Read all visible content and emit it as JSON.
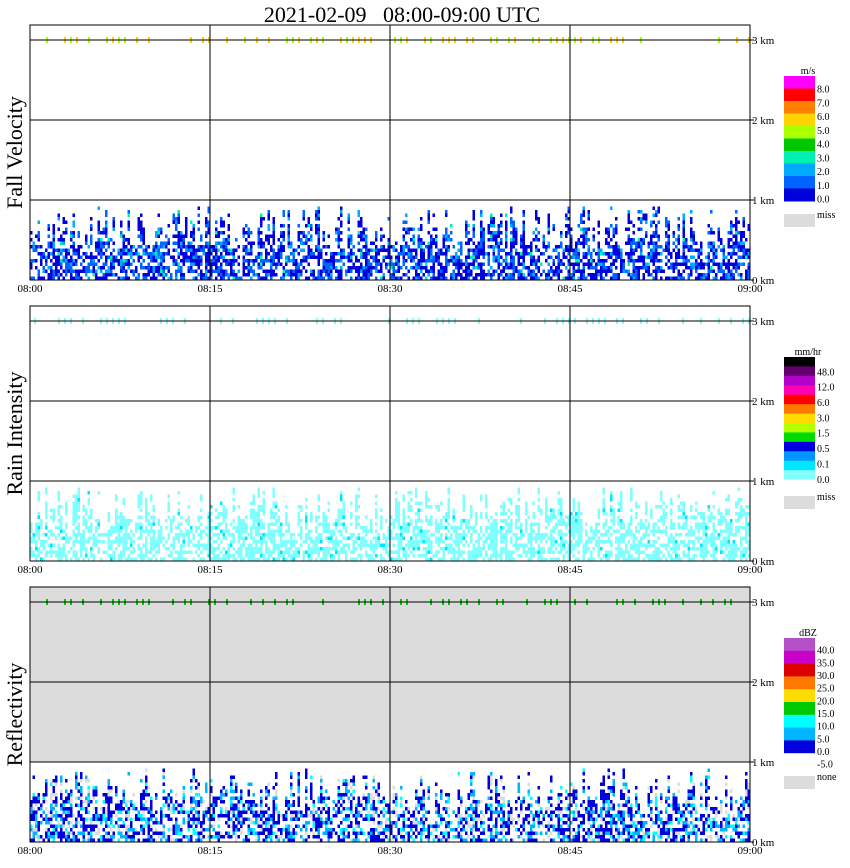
{
  "title": "2021-02-09   08:00-09:00 UTC",
  "x_tick_labels": [
    "08:00",
    "08:15",
    "08:30",
    "08:45",
    "09:00"
  ],
  "y_tick_labels": [
    "0 km",
    "1 km",
    "2 km",
    "3 km"
  ],
  "panels": [
    {
      "ylabel": "Fall Velocity",
      "unit": "m/s",
      "scale_labels": [
        "8.0",
        "7.0",
        "6.0",
        "5.0",
        "4.0",
        "3.0",
        "2.0",
        "1.0",
        "0.0"
      ],
      "scale_colors": [
        "#ff00ff",
        "#ff0000",
        "#ff7f00",
        "#ffd200",
        "#aaff00",
        "#00c800",
        "#00f0b4",
        "#00aaff",
        "#0064ff",
        "#0000dc"
      ],
      "miss_label": "miss",
      "miss_color": "#dcdcdc"
    },
    {
      "ylabel": "Rain Intensity",
      "unit": "mm/hr",
      "scale_labels": [
        "48.0",
        "12.0",
        "6.0",
        "3.0",
        "1.5",
        "0.5",
        "0.1",
        "0.0"
      ],
      "scale_colors": [
        "#000000",
        "#64006e",
        "#b400c8",
        "#ff00b4",
        "#ff0000",
        "#ff7800",
        "#ffdc00",
        "#b4ff00",
        "#00dc00",
        "#0000dc",
        "#0096ff",
        "#00e6ff",
        "#80ffff",
        "#ffffff"
      ],
      "miss_label": "miss",
      "miss_color": "#dcdcdc"
    },
    {
      "ylabel": "Reflectivity",
      "unit": "dBZ",
      "scale_labels": [
        "40.0",
        "35.0",
        "30.0",
        "25.0",
        "20.0",
        "15.0",
        "10.0",
        "5.0",
        "0.0",
        "-5.0"
      ],
      "scale_colors": [
        "#b450c8",
        "#c800c8",
        "#dc0000",
        "#ff7800",
        "#ffdc00",
        "#00c800",
        "#00ffff",
        "#00b4ff",
        "#0000dc",
        "#ffffff"
      ],
      "miss_label": "none",
      "miss_color": "#dcdcdc"
    }
  ],
  "chart_data": [
    {
      "type": "heatmap",
      "title": "2021-02-09   08:00-09:00 UTC",
      "ylabel": "Fall Velocity",
      "colorbar_label": "m/s",
      "x_range": [
        "08:00",
        "09:00"
      ],
      "y_range_km": [
        0,
        3.2
      ],
      "grid": true,
      "x_ticks": [
        "08:00",
        "08:15",
        "08:30",
        "08:45",
        "09:00"
      ],
      "y_ticks": [
        "0 km",
        "1 km",
        "2 km",
        "3 km"
      ],
      "precip_top_km": 0.95,
      "dominant_values_m_s": [
        1.0,
        2.0
      ],
      "upper_echo_height_km": 3.0
    },
    {
      "type": "heatmap",
      "ylabel": "Rain Intensity",
      "colorbar_label": "mm/hr",
      "x_range": [
        "08:00",
        "09:00"
      ],
      "y_range_km": [
        0,
        3.2
      ],
      "grid": true,
      "x_ticks": [
        "08:00",
        "08:15",
        "08:30",
        "08:45",
        "09:00"
      ],
      "y_ticks": [
        "0 km",
        "1 km",
        "2 km",
        "3 km"
      ],
      "precip_top_km": 0.95,
      "dominant_values_mm_hr": [
        0.1
      ],
      "upper_echo_height_km": 3.0
    },
    {
      "type": "heatmap",
      "ylabel": "Reflectivity",
      "colorbar_label": "dBZ",
      "x_range": [
        "08:00",
        "09:00"
      ],
      "y_range_km": [
        0,
        3.2
      ],
      "grid": true,
      "x_ticks": [
        "08:00",
        "08:15",
        "08:30",
        "08:45",
        "09:00"
      ],
      "y_ticks": [
        "0 km",
        "1 km",
        "2 km",
        "3 km"
      ],
      "precip_top_km": 0.95,
      "dominant_values_dBZ": [
        0.0,
        5.0
      ],
      "upper_echo_height_km": 3.0
    }
  ]
}
